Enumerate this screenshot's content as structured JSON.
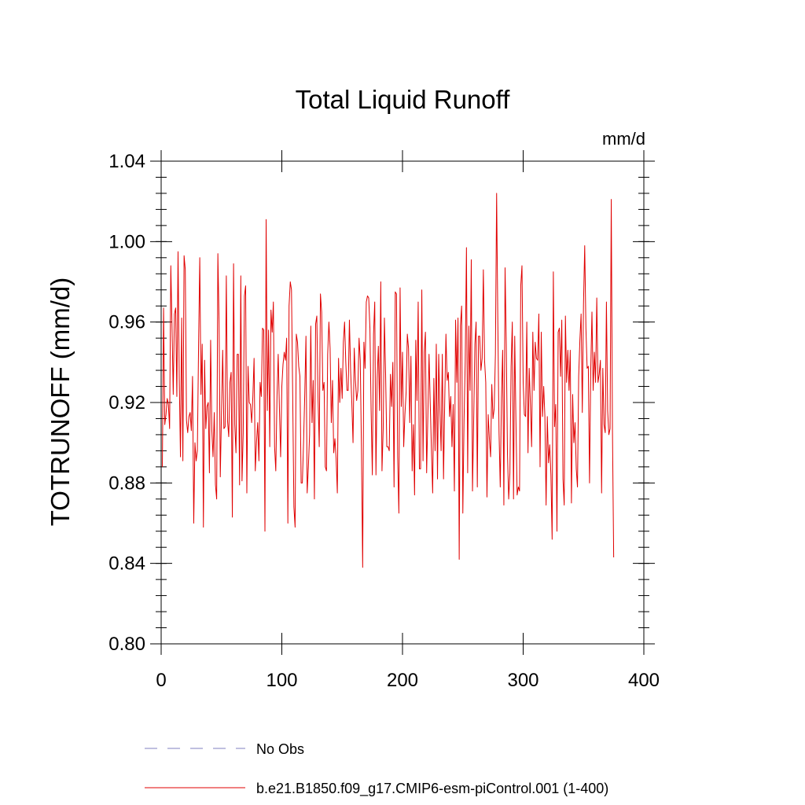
{
  "chart_data": {
    "type": "line",
    "title": "Total Liquid Runoff",
    "units": "mm/d",
    "ylabel": "TOTRUNOFF  (mm/d)",
    "xlabel": "",
    "xlim": [
      0,
      400
    ],
    "ylim": [
      0.8,
      1.04
    ],
    "x_ticks": [
      0,
      100,
      200,
      300,
      400
    ],
    "x_tick_labels": [
      "0",
      "100",
      "200",
      "300",
      "400"
    ],
    "y_ticks": [
      0.8,
      0.84,
      0.88,
      0.92,
      0.96,
      1.0,
      1.04
    ],
    "y_tick_labels": [
      "0.80",
      "0.84",
      "0.88",
      "0.92",
      "0.96",
      "1.00",
      "1.04"
    ],
    "grid": false,
    "legend_position": "bottom",
    "legend": [
      {
        "label": "No Obs",
        "color": "#8080c0",
        "style": "dashed"
      },
      {
        "label": "b.e21.B1850.f09_g17.CMIP6-esm-piControl.001 (1-400)",
        "color": "#e00000",
        "style": "solid"
      }
    ],
    "series": [
      {
        "name": "b.e21.B1850.f09_g17.CMIP6-esm-piControl.001 (1-400)",
        "color": "#e00000",
        "x_start": 1,
        "x_step": 1,
        "values": [
          0.888,
          0.967,
          0.909,
          0.914,
          0.922,
          0.919,
          0.907,
          0.988,
          0.958,
          0.924,
          0.964,
          0.967,
          0.923,
          0.995,
          0.932,
          0.893,
          0.962,
          0.891,
          0.993,
          0.986,
          0.911,
          0.905,
          0.913,
          0.915,
          0.906,
          0.933,
          0.86,
          0.9,
          0.891,
          0.896,
          0.948,
          0.992,
          0.924,
          0.949,
          0.858,
          0.941,
          0.907,
          0.918,
          0.92,
          0.885,
          0.951,
          0.906,
          0.893,
          0.915,
          0.879,
          0.872,
          0.994,
          0.96,
          0.883,
          0.915,
          0.946,
          0.907,
          0.908,
          0.983,
          0.911,
          0.903,
          0.93,
          0.935,
          0.863,
          0.989,
          0.909,
          0.895,
          0.944,
          0.944,
          0.879,
          0.983,
          0.881,
          0.905,
          0.973,
          0.978,
          0.875,
          0.938,
          0.92,
          0.919,
          0.91,
          0.923,
          0.942,
          0.886,
          0.9,
          0.91,
          0.891,
          0.93,
          0.923,
          0.957,
          0.956,
          0.856,
          1.011,
          0.916,
          0.956,
          0.898,
          0.966,
          0.955,
          0.97,
          0.898,
          0.886,
          0.923,
          0.944,
          0.917,
          0.893,
          0.928,
          0.939,
          0.945,
          0.941,
          0.952,
          0.86,
          0.968,
          0.98,
          0.976,
          0.924,
          0.868,
          0.858,
          0.954,
          0.95,
          0.938,
          0.933,
          0.88,
          0.88,
          0.9,
          0.924,
          0.953,
          0.875,
          0.888,
          0.904,
          0.958,
          0.91,
          0.931,
          0.872,
          0.959,
          0.963,
          0.922,
          0.898,
          0.974,
          0.965,
          0.926,
          0.93,
          0.888,
          0.886,
          0.944,
          0.96,
          0.947,
          0.91,
          0.931,
          0.895,
          0.902,
          0.892,
          0.875,
          0.942,
          0.92,
          0.937,
          0.922,
          0.95,
          0.96,
          0.94,
          0.926,
          0.926,
          0.961,
          0.936,
          0.92,
          0.9,
          0.947,
          0.931,
          0.921,
          0.926,
          0.952,
          0.941,
          0.896,
          0.838,
          0.95,
          0.937,
          0.97,
          0.973,
          0.972,
          0.957,
          0.916,
          0.884,
          0.954,
          0.97,
          0.884,
          0.932,
          0.948,
          0.916,
          0.98,
          0.886,
          0.907,
          0.962,
          0.934,
          0.898,
          0.898,
          0.896,
          0.934,
          0.918,
          0.94,
          0.878,
          0.975,
          0.974,
          0.893,
          0.865,
          0.977,
          0.918,
          0.945,
          0.898,
          0.914,
          0.925,
          0.954,
          0.947,
          0.91,
          0.943,
          0.886,
          0.909,
          0.874,
          0.951,
          0.921,
          0.97,
          0.887,
          0.887,
          0.976,
          0.891,
          0.945,
          0.955,
          0.885,
          0.913,
          0.944,
          0.919,
          0.896,
          0.875,
          0.932,
          0.896,
          0.949,
          0.882,
          0.944,
          0.916,
          0.896,
          0.944,
          0.882,
          0.921,
          0.954,
          0.931,
          0.935,
          0.913,
          0.923,
          0.898,
          0.919,
          0.876,
          0.961,
          0.93,
          0.962,
          0.842,
          0.958,
          0.968,
          0.865,
          0.911,
          0.941,
          0.997,
          0.885,
          0.958,
          0.926,
          0.991,
          0.876,
          0.912,
          0.949,
          0.96,
          0.878,
          0.953,
          0.953,
          0.936,
          0.942,
          0.986,
          0.941,
          0.93,
          0.873,
          0.914,
          0.902,
          0.893,
          0.929,
          0.912,
          0.917,
          0.944,
          1.024,
          0.96,
          0.905,
          0.878,
          0.922,
          0.946,
          0.869,
          0.987,
          0.949,
          0.894,
          0.872,
          0.885,
          0.938,
          0.96,
          0.872,
          0.953,
          0.911,
          0.874,
          0.878,
          0.876,
          0.978,
          0.988,
          0.93,
          0.914,
          0.913,
          0.96,
          0.895,
          0.937,
          0.919,
          0.898,
          0.955,
          0.926,
          0.95,
          0.942,
          0.941,
          0.964,
          0.888,
          0.955,
          0.913,
          0.928,
          0.913,
          0.869,
          0.913,
          0.89,
          0.899,
          0.884,
          0.852,
          0.985,
          0.908,
          0.919,
          0.856,
          0.955,
          0.957,
          0.933,
          0.961,
          0.882,
          0.869,
          0.963,
          0.93,
          0.946,
          0.926,
          0.946,
          0.87,
          0.924,
          0.9,
          0.91,
          0.887,
          0.878,
          0.933,
          0.951,
          0.964,
          0.915,
          0.969,
          0.998,
          0.957,
          0.937,
          0.938,
          0.88,
          0.936,
          0.965,
          0.926,
          0.945,
          0.93,
          0.972,
          0.93,
          0.934,
          0.941,
          0.875,
          0.937,
          0.909,
          0.905,
          0.97,
          0.916,
          0.904,
          0.907,
          1.021,
          0.906,
          0.843
        ]
      }
    ]
  }
}
